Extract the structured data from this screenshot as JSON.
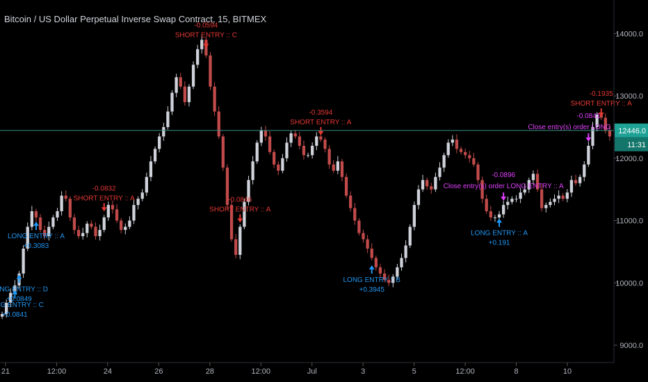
{
  "chart_data": {
    "type": "candlestick",
    "title": "Bitcoin / US Dollar Perpetual Inverse Swap Contract, 15, BITMEX",
    "x_ticks": [
      "21",
      "12:00",
      "24",
      "26",
      "28",
      "12:00",
      "Jul",
      "3",
      "5",
      "12:00",
      "8",
      "10"
    ],
    "y_ticks": [
      "14000.0",
      "13000.0",
      "12000.0",
      "11000.0",
      "10000.0",
      "9000.0"
    ],
    "ylim": [
      8800,
      14450
    ],
    "grid": false,
    "last_price": "12446.0",
    "last_price_value": 12446,
    "countdown": "11:31",
    "series": [
      {
        "values": [
          9500,
          9680,
          9840,
          9960,
          10150,
          10550,
          10900,
          11150,
          11050,
          10850,
          10750,
          10900,
          11050,
          11150,
          11400,
          11350,
          11050,
          10850,
          10750,
          10800,
          10950,
          10900,
          10750,
          10850,
          11050,
          11250,
          11180,
          11000,
          10850,
          10900,
          11000,
          11250,
          11350,
          11450,
          11700,
          11950,
          12150,
          12350,
          12500,
          12750,
          13050,
          13300,
          13150,
          12900,
          13150,
          13500,
          13750,
          13900,
          13650,
          13150,
          12750,
          12350,
          11850,
          11250,
          10700,
          10450,
          10900,
          11300,
          11650,
          11950,
          12250,
          12450,
          12350,
          12100,
          11900,
          11800,
          12000,
          12250,
          12400,
          12350,
          12200,
          12050,
          12050,
          12200,
          12350,
          12300,
          12150,
          11900,
          11800,
          11950,
          11700,
          11400,
          11200,
          11000,
          10800,
          10700,
          10550,
          10400,
          10250,
          10150,
          10050,
          10000,
          10100,
          10250,
          10400,
          10600,
          10900,
          11250,
          11500,
          11650,
          11550,
          11500,
          11700,
          11850,
          12050,
          12250,
          12300,
          12150,
          12100,
          12050,
          12000,
          11900,
          11650,
          11350,
          11150,
          11050,
          11050,
          11100,
          11250,
          11300,
          11350,
          11350,
          11450,
          11500,
          11650,
          11750,
          11500,
          11200,
          11250,
          11300,
          11350,
          11400,
          11350,
          11450,
          11650,
          11600,
          11700,
          11900,
          12200,
          12500,
          12700,
          12650,
          12450,
          12350
        ]
      }
    ],
    "annotations": [
      {
        "kind": "long",
        "label": "LONG ENTRY :: A",
        "value": "+0.3083",
        "price": 11050
      },
      {
        "kind": "long",
        "label": "LONG ENTRY :: B",
        "value": "+0.3945",
        "price": 10350
      },
      {
        "kind": "long",
        "label": "LONG ENTRY :: D",
        "value": "+0.0849",
        "price": 10200
      },
      {
        "kind": "long",
        "label": "LONG ENTRY :: C",
        "value": "+0.0841",
        "price": 9950
      },
      {
        "kind": "long",
        "label": "LONG ENTRY :: A",
        "value": "+0.191",
        "price": 11100
      },
      {
        "kind": "short",
        "label": "SHORT ENTRY :: A",
        "value": "-0.0832",
        "price": 11080
      },
      {
        "kind": "short",
        "label": "SHORT ENTRY :: A",
        "value": "-0.0846",
        "price": 10900
      },
      {
        "kind": "short",
        "label": "SHORT ENTRY :: C",
        "value": "-0.0594",
        "price": 13700
      },
      {
        "kind": "short",
        "label": "SHORT ENTRY :: A",
        "value": "-0.3594",
        "price": 12300
      },
      {
        "kind": "short",
        "label": "SHORT ENTRY :: A",
        "value": "-0.1935",
        "price": 12600
      },
      {
        "kind": "close",
        "label": "Close entry(s) order LONG ENTRY :: A",
        "value": "-0.0896",
        "price": 11250
      },
      {
        "kind": "close",
        "label": "Close entry(s) order LONG ENTRY :: C",
        "value": "-0.0841",
        "price": 12200
      }
    ]
  },
  "colors": {
    "background": "#000000",
    "up": "#cfd2da",
    "down": "#c14a4a",
    "long": "#2196f3",
    "short": "#e53935",
    "close": "#e040fb",
    "axis_text": "#b2b5be",
    "price_badge": "#1ea296",
    "price_line": "#3b8f85"
  }
}
